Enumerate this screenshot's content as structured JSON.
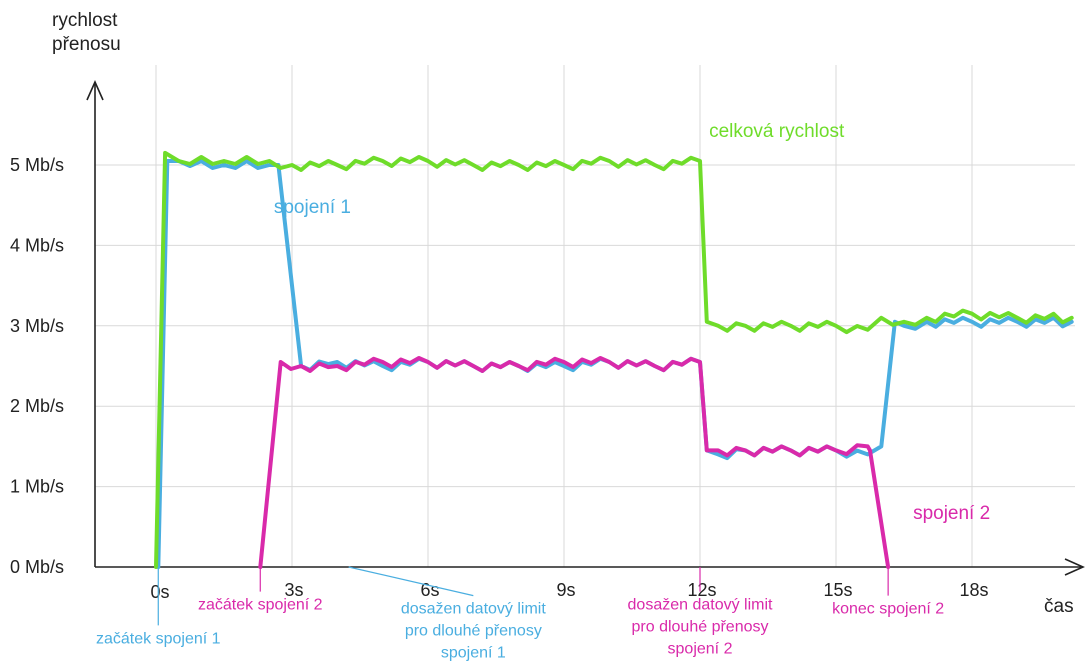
{
  "chart_data": {
    "type": "line",
    "ylabel_lines": [
      "rychlost",
      "přenosu"
    ],
    "xlabel": "čas",
    "xlim": [
      -1.2,
      20.5
    ],
    "ylim": [
      0,
      5.5
    ],
    "y_ticks": [
      {
        "value": 0,
        "label": "0 Mb/s"
      },
      {
        "value": 1,
        "label": "1 Mb/s"
      },
      {
        "value": 2,
        "label": "2 Mb/s"
      },
      {
        "value": 3,
        "label": "3 Mb/s"
      },
      {
        "value": 4,
        "label": "4 Mb/s"
      },
      {
        "value": 5,
        "label": "5 Mb/s"
      }
    ],
    "x_ticks": [
      {
        "value": 0,
        "label": "0s"
      },
      {
        "value": 3,
        "label": "3s"
      },
      {
        "value": 6,
        "label": "6s"
      },
      {
        "value": 9,
        "label": "9s"
      },
      {
        "value": 12,
        "label": "12s"
      },
      {
        "value": 15,
        "label": "15s"
      },
      {
        "value": 18,
        "label": "18s"
      }
    ],
    "grid": true,
    "series": [
      {
        "name": "celková rychlost",
        "color": "#6fdc2a",
        "x": [
          0,
          0.2,
          0.5,
          1,
          1.5,
          2,
          2.5,
          3,
          4,
          5,
          6,
          7,
          8,
          9,
          10,
          11,
          12,
          12.15,
          12.4,
          13,
          14,
          15,
          15.7,
          16,
          16.5,
          17,
          18,
          19,
          20.2
        ],
        "y": [
          0,
          5.15,
          5.05,
          5.1,
          5.05,
          5.1,
          5.05,
          5.0,
          5.0,
          5.05,
          5.05,
          5.0,
          5.0,
          5.0,
          5.05,
          5.0,
          5.05,
          3.05,
          3.0,
          3.0,
          3.0,
          3.0,
          2.95,
          3.1,
          3.05,
          3.1,
          3.15,
          3.1,
          3.1
        ]
      },
      {
        "name": "spojení 1",
        "color": "#4aaee0",
        "x": [
          0.05,
          0.25,
          0.5,
          1,
          1.5,
          2,
          2.5,
          2.7,
          3.2,
          4,
          5,
          6,
          7,
          8,
          9,
          10,
          11,
          12,
          12.15,
          12.4,
          13,
          14,
          15,
          15.7,
          16,
          16.3,
          16.5,
          17,
          18,
          19,
          20.2
        ],
        "y": [
          0,
          5.05,
          5.05,
          5.05,
          5.0,
          5.05,
          5.0,
          5.0,
          2.5,
          2.55,
          2.5,
          2.55,
          2.5,
          2.5,
          2.5,
          2.55,
          2.5,
          2.55,
          1.45,
          1.4,
          1.45,
          1.45,
          1.45,
          1.4,
          1.5,
          3.05,
          3.0,
          3.05,
          3.05,
          3.05,
          3.05
        ]
      },
      {
        "name": "spojení 2",
        "color": "#d92aaa",
        "x": [
          2.3,
          2.75,
          3.2,
          4,
          5,
          6,
          7,
          8,
          9,
          10,
          11,
          12,
          12.15,
          12.4,
          13,
          14,
          15,
          15.7,
          15.75,
          16.15
        ],
        "y": [
          0,
          2.55,
          2.5,
          2.5,
          2.55,
          2.55,
          2.5,
          2.5,
          2.55,
          2.55,
          2.5,
          2.55,
          1.45,
          1.45,
          1.45,
          1.45,
          1.45,
          1.5,
          1.45,
          0
        ]
      }
    ],
    "series_labels": [
      {
        "series": 0,
        "text": "celková rychlost",
        "x": 12.2,
        "y": 5.35
      },
      {
        "series": 1,
        "text": "spojení 1",
        "x": 2.6,
        "y": 4.4
      },
      {
        "series": 2,
        "text": "spojení 2",
        "x": 16.7,
        "y": 0.6
      }
    ],
    "annotations": [
      {
        "series": 1,
        "x": 0.05,
        "lines": [
          "začátek spojení 1"
        ],
        "tx": 0.05,
        "first_line_y": -0.95
      },
      {
        "series": 2,
        "x": 2.3,
        "lines": [
          "začátek spojení 2"
        ],
        "tx": 2.3,
        "first_line_y": -0.53
      },
      {
        "series": 1,
        "x": 4.25,
        "lines": [
          "dosažen datový limit",
          "pro dlouhé přenosy",
          "spojení 1"
        ],
        "tx": 7.0,
        "first_line_y": -0.58
      },
      {
        "series": 2,
        "x": 12.0,
        "lines": [
          "dosažen datový limit",
          "pro dlouhé přenosy",
          "spojení 2"
        ],
        "tx": 12.0,
        "first_line_y": -0.53
      },
      {
        "series": 2,
        "x": 16.15,
        "lines": [
          "konec spojení 2"
        ],
        "tx": 16.15,
        "first_line_y": -0.58
      }
    ]
  }
}
